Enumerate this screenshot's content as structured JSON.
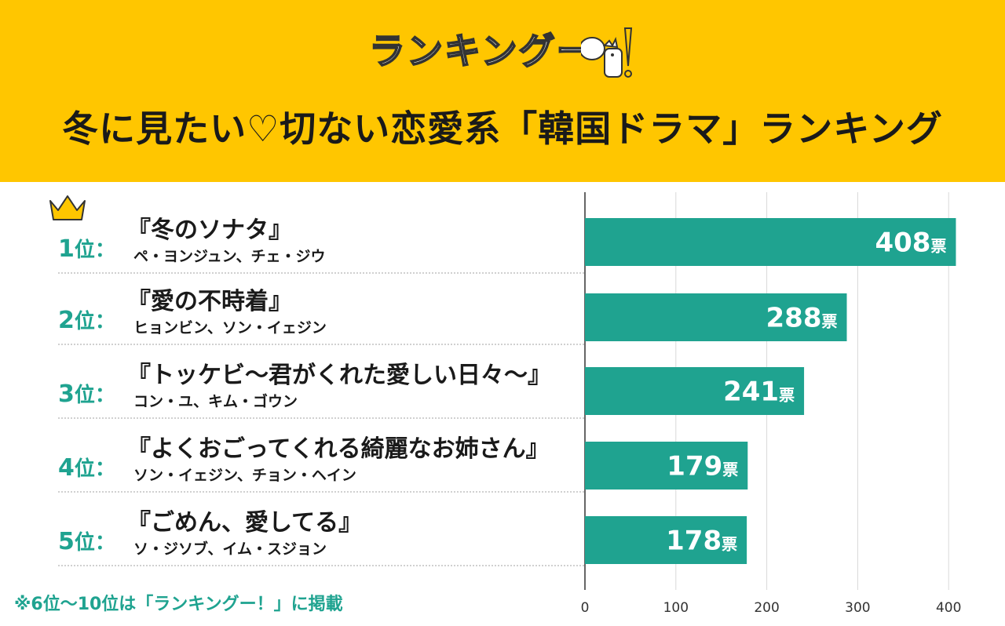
{
  "header": {
    "logo_text": "ランキングー",
    "title": "冬に見たい♡切ない恋愛系「韓国ドラマ」ランキング"
  },
  "colors": {
    "header_bg": "#ffc600",
    "accent": "#1fa390",
    "bar": "#1fa390"
  },
  "rankings": [
    {
      "rank": "1",
      "rank_suffix": "位：",
      "title": "『冬のソナタ』",
      "cast": "ペ・ヨンジュン、チェ・ジウ",
      "votes_label": "408",
      "unit": "票"
    },
    {
      "rank": "2",
      "rank_suffix": "位：",
      "title": "『愛の不時着』",
      "cast": "ヒョンビン、ソン・イェジン",
      "votes_label": "288",
      "unit": "票"
    },
    {
      "rank": "3",
      "rank_suffix": "位：",
      "title": "『トッケビ～君がくれた愛しい日々～』",
      "cast": "コン・ユ、キム・ゴウン",
      "votes_label": "241",
      "unit": "票"
    },
    {
      "rank": "4",
      "rank_suffix": "位：",
      "title": "『よくおごってくれる綺麗なお姉さん』",
      "cast": "ソン・イェジン、チョン・ヘイン",
      "votes_label": "179",
      "unit": "票"
    },
    {
      "rank": "5",
      "rank_suffix": "位：",
      "title": "『ごめん、愛してる』",
      "cast": "ソ・ジソブ、イム・スジョン",
      "votes_label": "178",
      "unit": "票"
    }
  ],
  "footnote": "※6位～10位は「ランキングー！」に掲載",
  "chart_data": {
    "type": "bar",
    "orientation": "horizontal",
    "categories": [
      "『冬のソナタ』",
      "『愛の不時着』",
      "『トッケビ～君がくれた愛しい日々～』",
      "『よくおごってくれる綺麗なお姉さん』",
      "『ごめん、愛してる』"
    ],
    "values": [
      408,
      288,
      241,
      179,
      178
    ],
    "value_unit": "票",
    "xlim": [
      0,
      400
    ],
    "xticks": [
      0,
      100,
      200,
      300,
      400
    ],
    "grid": true,
    "bar_color": "#1fa390"
  }
}
